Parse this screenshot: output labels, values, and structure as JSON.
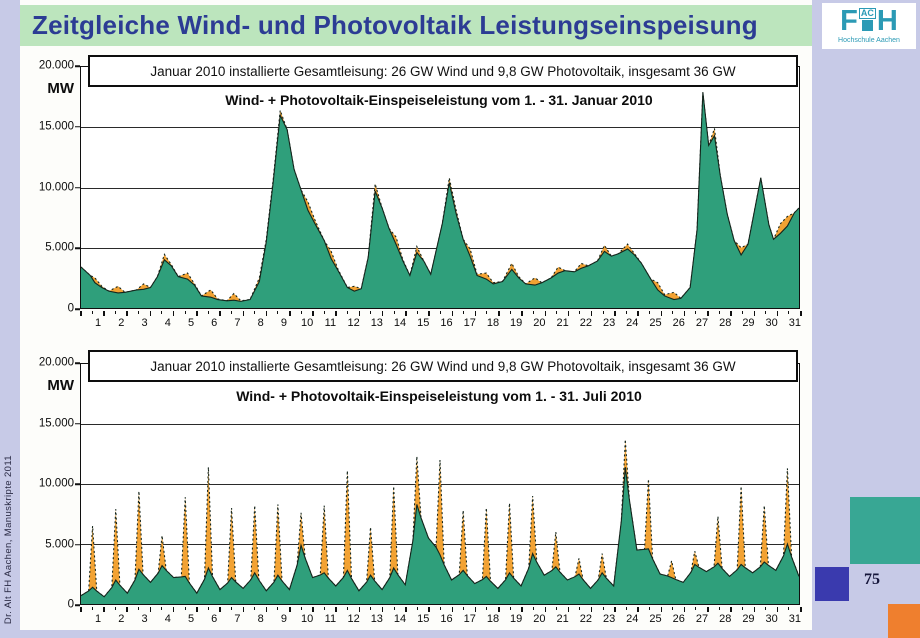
{
  "slide": {
    "title": "Zeitgleiche Wind- und Photovoltaik Leistungseinspeisung",
    "side_note": "Dr. Alt FH Aachen, Manuskripte 2011",
    "page_number": "75",
    "logo": {
      "f": "F",
      "ac": "AC",
      "h": "H",
      "caption": "Hochschule Aachen"
    }
  },
  "colors": {
    "title_text": "#2c3c94",
    "title_band": "#bce5bd",
    "margin": "#c7cae7",
    "wind_green": "#2f9f7b",
    "pv_orange": "#f2a233",
    "outline": "#14251c",
    "deco_teal": "#38a794",
    "deco_indigo": "#3a3aae",
    "deco_orange": "#ef7f2e",
    "logo_teal": "#2b9ab5"
  },
  "chart_data": [
    {
      "type": "area",
      "title": "Wind- + Photovoltaik-Einspeiseleistung vom 1. - 31. Januar 2010",
      "info_box": "Januar 2010 installierte Gesamtleisung: 26 GW Wind und 9,8 GW Photovoltaik, insgesamt 36 GW",
      "ylabel": "MW",
      "ylim": [
        0,
        20000
      ],
      "ytick_labels": [
        "20.000",
        "15.000",
        "10.000",
        "5.000",
        "0"
      ],
      "xlim": [
        0,
        31
      ],
      "xtick_labels": [
        "1",
        "2",
        "3",
        "4",
        "5",
        "6",
        "7",
        "8",
        "9",
        "10",
        "11",
        "12",
        "13",
        "14",
        "15",
        "16",
        "17",
        "18",
        "19",
        "20",
        "21",
        "22",
        "23",
        "24",
        "25",
        "26",
        "27",
        "28",
        "29",
        "30",
        "31"
      ],
      "grid": "horizontal",
      "legend": "none",
      "series": [
        {
          "name": "Wind",
          "color": "wind_green"
        },
        {
          "name": "Wind + Photovoltaik (Summe)",
          "color": "pv_orange"
        }
      ],
      "points_format": [
        "day_x",
        "wind_mw",
        "wind_plus_pv_mw"
      ],
      "points": [
        [
          0,
          3400,
          3400
        ],
        [
          0.4,
          2700,
          2700
        ],
        [
          0.6,
          2100,
          2500
        ],
        [
          0.9,
          1700,
          1800
        ],
        [
          1.2,
          1400,
          1400
        ],
        [
          1.6,
          1250,
          1800
        ],
        [
          1.9,
          1300,
          1300
        ],
        [
          2.4,
          1500,
          1500
        ],
        [
          2.7,
          1550,
          2000
        ],
        [
          3.0,
          1700,
          1700
        ],
        [
          3.3,
          2600,
          2600
        ],
        [
          3.6,
          4000,
          4450
        ],
        [
          3.9,
          3500,
          3600
        ],
        [
          4.2,
          2600,
          2600
        ],
        [
          4.6,
          2400,
          2900
        ],
        [
          4.9,
          1900,
          2000
        ],
        [
          5.2,
          1000,
          1000
        ],
        [
          5.6,
          900,
          1500
        ],
        [
          5.9,
          700,
          750
        ],
        [
          6.3,
          600,
          600
        ],
        [
          6.6,
          650,
          1200
        ],
        [
          6.9,
          550,
          600
        ],
        [
          7.3,
          700,
          700
        ],
        [
          7.7,
          2200,
          2500
        ],
        [
          8.0,
          5500,
          5700
        ],
        [
          8.3,
          10500,
          10700
        ],
        [
          8.6,
          16000,
          16400
        ],
        [
          8.9,
          14800,
          14800
        ],
        [
          9.2,
          11500,
          11500
        ],
        [
          9.5,
          9800,
          9800
        ],
        [
          9.8,
          8100,
          8800
        ],
        [
          10.1,
          7000,
          7300
        ],
        [
          10.5,
          5600,
          5600
        ],
        [
          10.8,
          4100,
          4700
        ],
        [
          11.1,
          3100,
          3200
        ],
        [
          11.5,
          1700,
          1700
        ],
        [
          11.8,
          1400,
          1800
        ],
        [
          12.1,
          1600,
          1600
        ],
        [
          12.4,
          4200,
          4200
        ],
        [
          12.7,
          9700,
          10300
        ],
        [
          13.0,
          8300,
          8300
        ],
        [
          13.3,
          6600,
          6600
        ],
        [
          13.6,
          5300,
          5900
        ],
        [
          13.9,
          3900,
          4000
        ],
        [
          14.2,
          2700,
          2700
        ],
        [
          14.5,
          4600,
          5100
        ],
        [
          14.8,
          3900,
          3900
        ],
        [
          15.1,
          2800,
          2800
        ],
        [
          15.6,
          7000,
          7000
        ],
        [
          15.9,
          10400,
          10800
        ],
        [
          16.2,
          7800,
          8100
        ],
        [
          16.5,
          5700,
          5700
        ],
        [
          16.8,
          4300,
          4900
        ],
        [
          17.1,
          2700,
          2800
        ],
        [
          17.5,
          2400,
          2900
        ],
        [
          17.8,
          2000,
          2100
        ],
        [
          18.2,
          2200,
          2200
        ],
        [
          18.6,
          3200,
          3700
        ],
        [
          18.9,
          2500,
          2600
        ],
        [
          19.2,
          2000,
          2000
        ],
        [
          19.6,
          1900,
          2500
        ],
        [
          19.9,
          2100,
          2100
        ],
        [
          20.3,
          2500,
          2500
        ],
        [
          20.6,
          2900,
          3400
        ],
        [
          20.9,
          3100,
          3100
        ],
        [
          21.3,
          3000,
          3000
        ],
        [
          21.6,
          3300,
          3700
        ],
        [
          21.9,
          3500,
          3500
        ],
        [
          22.3,
          3900,
          3900
        ],
        [
          22.6,
          4700,
          5200
        ],
        [
          22.9,
          4300,
          4300
        ],
        [
          23.2,
          4500,
          4500
        ],
        [
          23.6,
          4900,
          5300
        ],
        [
          23.9,
          4400,
          4500
        ],
        [
          24.2,
          3700,
          3700
        ],
        [
          24.6,
          2400,
          2400
        ],
        [
          24.9,
          1500,
          2100
        ],
        [
          25.2,
          1000,
          1100
        ],
        [
          25.6,
          700,
          1300
        ],
        [
          25.9,
          800,
          800
        ],
        [
          26.3,
          1700,
          1700
        ],
        [
          26.6,
          6500,
          6500
        ],
        [
          26.85,
          17900,
          17900
        ],
        [
          27.1,
          13500,
          13500
        ],
        [
          27.35,
          14300,
          14900
        ],
        [
          27.6,
          11000,
          11000
        ],
        [
          27.9,
          7800,
          7800
        ],
        [
          28.2,
          5600,
          5600
        ],
        [
          28.5,
          4400,
          5000
        ],
        [
          28.8,
          5300,
          5300
        ],
        [
          29.1,
          8300,
          8300
        ],
        [
          29.35,
          10800,
          10800
        ],
        [
          29.7,
          6900,
          6900
        ],
        [
          29.9,
          5700,
          5700
        ],
        [
          30.2,
          6200,
          7000
        ],
        [
          30.5,
          6800,
          7600
        ],
        [
          30.8,
          7900,
          7900
        ],
        [
          31,
          8300,
          8300
        ]
      ]
    },
    {
      "type": "area",
      "title": "Wind- + Photovoltaik-Einspeiseleistung vom 1. - 31. Juli 2010",
      "info_box": "Januar 2010 installierte Gesamtleisung: 26 GW Wind und 9,8 GW Photovoltaik, insgesamt 36 GW",
      "ylabel": "MW",
      "ylim": [
        0,
        20000
      ],
      "ytick_labels": [
        "20.000",
        "15.000",
        "10.000",
        "5.000",
        "0"
      ],
      "xlim": [
        0,
        31
      ],
      "xtick_labels": [
        "1",
        "2",
        "3",
        "4",
        "5",
        "6",
        "7",
        "8",
        "9",
        "10",
        "11",
        "12",
        "13",
        "14",
        "15",
        "16",
        "17",
        "18",
        "19",
        "20",
        "21",
        "22",
        "23",
        "24",
        "25",
        "26",
        "27",
        "28",
        "29",
        "30",
        "31"
      ],
      "grid": "horizontal",
      "legend": "none",
      "series": [
        {
          "name": "Wind",
          "color": "wind_green"
        },
        {
          "name": "Wind + Photovoltaik (Summe)",
          "color": "pv_orange"
        }
      ],
      "daily_format": [
        "day",
        "wind_night_mw",
        "wind_midday_mw",
        "total_midday_peak_mw"
      ],
      "daily": [
        [
          1,
          700,
          1400,
          6500
        ],
        [
          2,
          600,
          2000,
          7900
        ],
        [
          3,
          900,
          2900,
          9400
        ],
        [
          4,
          1800,
          3200,
          5700
        ],
        [
          5,
          2200,
          2300,
          8900
        ],
        [
          6,
          900,
          3000,
          11400
        ],
        [
          7,
          1200,
          2200,
          8000
        ],
        [
          8,
          1300,
          2600,
          8200
        ],
        [
          9,
          1100,
          2400,
          8300
        ],
        [
          10,
          1200,
          4900,
          7600
        ],
        [
          11,
          2200,
          2600,
          8200
        ],
        [
          12,
          1500,
          2800,
          11100
        ],
        [
          13,
          1100,
          2400,
          6400
        ],
        [
          14,
          1200,
          3000,
          9800
        ],
        [
          15,
          1600,
          8300,
          12300
        ],
        [
          16,
          5500,
          4100,
          12000
        ],
        [
          17,
          2000,
          2800,
          7800
        ],
        [
          18,
          1700,
          2300,
          8000
        ],
        [
          19,
          1300,
          2600,
          8400
        ],
        [
          20,
          1500,
          4200,
          9000
        ],
        [
          21,
          2400,
          3100,
          6000
        ],
        [
          22,
          2000,
          2500,
          3800
        ],
        [
          23,
          1300,
          2600,
          4200
        ],
        [
          24,
          1500,
          11400,
          13700
        ],
        [
          25,
          4500,
          4600,
          10400
        ],
        [
          26,
          2500,
          2200,
          3600
        ],
        [
          27,
          1800,
          3300,
          4400
        ],
        [
          28,
          2700,
          3400,
          7300
        ],
        [
          29,
          2300,
          3300,
          9800
        ],
        [
          30,
          2600,
          3500,
          8200
        ],
        [
          31,
          2800,
          5000,
          11300
        ]
      ],
      "end_wind_mw": 2300
    }
  ]
}
